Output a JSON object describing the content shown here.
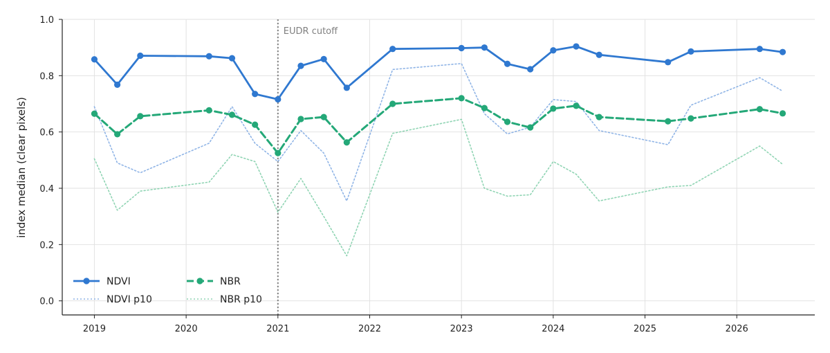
{
  "chart_data": {
    "type": "line",
    "title": "",
    "xlabel": "",
    "ylabel": "index median (clear pixels)",
    "xlim": [
      2018.65,
      2026.85
    ],
    "ylim": [
      -0.05,
      1.0
    ],
    "x_ticks": [
      "2019",
      "2020",
      "2021",
      "2022",
      "2023",
      "2024",
      "2025",
      "2026"
    ],
    "y_ticks": [
      "0.0",
      "0.2",
      "0.4",
      "0.6",
      "0.8",
      "1.0"
    ],
    "grid": true,
    "legend_position": "lower-left",
    "annotations": [
      {
        "text": "EUDR cutoff",
        "x": 2021.0,
        "style": "vertical-dotted-line",
        "color": "#808080"
      }
    ],
    "series": [
      {
        "name": "NDVI",
        "color": "#2f78d0",
        "style": "solid",
        "markers": true,
        "points": [
          [
            2019.0,
            0.858
          ],
          [
            2019.25,
            0.768
          ],
          [
            2019.5,
            0.871
          ],
          [
            2020.25,
            0.869
          ],
          [
            2020.5,
            0.862
          ],
          [
            2020.75,
            0.735
          ],
          [
            2021.0,
            0.716
          ],
          [
            2021.25,
            0.835
          ],
          [
            2021.5,
            0.859
          ],
          [
            2021.75,
            0.757
          ],
          [
            2022.25,
            0.895
          ],
          [
            2023.0,
            0.898
          ],
          [
            2023.25,
            0.9
          ],
          [
            2023.5,
            0.842
          ],
          [
            2023.75,
            0.823
          ],
          [
            2024.0,
            0.89
          ],
          [
            2024.25,
            0.904
          ],
          [
            2024.5,
            0.874
          ],
          [
            2025.25,
            0.848
          ],
          [
            2025.5,
            0.886
          ],
          [
            2026.25,
            0.895
          ],
          [
            2026.5,
            0.884
          ]
        ]
      },
      {
        "name": "NBR",
        "color": "#24a878",
        "style": "dashed",
        "markers": true,
        "points": [
          [
            2019.0,
            0.665
          ],
          [
            2019.25,
            0.592
          ],
          [
            2019.5,
            0.656
          ],
          [
            2020.25,
            0.677
          ],
          [
            2020.5,
            0.661
          ],
          [
            2020.75,
            0.626
          ],
          [
            2021.0,
            0.525
          ],
          [
            2021.25,
            0.646
          ],
          [
            2021.5,
            0.653
          ],
          [
            2021.75,
            0.563
          ],
          [
            2022.25,
            0.7
          ],
          [
            2023.0,
            0.72
          ],
          [
            2023.25,
            0.685
          ],
          [
            2023.5,
            0.636
          ],
          [
            2023.75,
            0.616
          ],
          [
            2024.0,
            0.683
          ],
          [
            2024.25,
            0.693
          ],
          [
            2024.5,
            0.653
          ],
          [
            2025.25,
            0.638
          ],
          [
            2025.5,
            0.648
          ],
          [
            2026.25,
            0.681
          ],
          [
            2026.5,
            0.666
          ]
        ]
      },
      {
        "name": "NDVI p10",
        "color": "#8fb4e6",
        "style": "dotted",
        "markers": false,
        "points": [
          [
            2019.0,
            0.69
          ],
          [
            2019.25,
            0.49
          ],
          [
            2019.5,
            0.455
          ],
          [
            2020.25,
            0.56
          ],
          [
            2020.5,
            0.69
          ],
          [
            2020.75,
            0.56
          ],
          [
            2021.0,
            0.495
          ],
          [
            2021.25,
            0.605
          ],
          [
            2021.5,
            0.525
          ],
          [
            2021.75,
            0.355
          ],
          [
            2022.25,
            0.822
          ],
          [
            2023.0,
            0.843
          ],
          [
            2023.25,
            0.665
          ],
          [
            2023.5,
            0.593
          ],
          [
            2023.75,
            0.617
          ],
          [
            2024.0,
            0.715
          ],
          [
            2024.25,
            0.708
          ],
          [
            2024.5,
            0.605
          ],
          [
            2025.25,
            0.555
          ],
          [
            2025.5,
            0.695
          ],
          [
            2026.25,
            0.793
          ],
          [
            2026.5,
            0.745
          ]
        ]
      },
      {
        "name": "NBR p10",
        "color": "#8fd4b3",
        "style": "dotted",
        "markers": false,
        "points": [
          [
            2019.0,
            0.505
          ],
          [
            2019.25,
            0.322
          ],
          [
            2019.5,
            0.39
          ],
          [
            2020.25,
            0.422
          ],
          [
            2020.5,
            0.52
          ],
          [
            2020.75,
            0.495
          ],
          [
            2021.0,
            0.315
          ],
          [
            2021.25,
            0.435
          ],
          [
            2021.5,
            0.3
          ],
          [
            2021.75,
            0.16
          ],
          [
            2022.25,
            0.595
          ],
          [
            2023.0,
            0.645
          ],
          [
            2023.25,
            0.4
          ],
          [
            2023.5,
            0.372
          ],
          [
            2023.75,
            0.377
          ],
          [
            2024.0,
            0.495
          ],
          [
            2024.25,
            0.45
          ],
          [
            2024.5,
            0.355
          ],
          [
            2025.25,
            0.405
          ],
          [
            2025.5,
            0.41
          ],
          [
            2026.25,
            0.55
          ],
          [
            2026.5,
            0.485
          ]
        ]
      }
    ]
  }
}
